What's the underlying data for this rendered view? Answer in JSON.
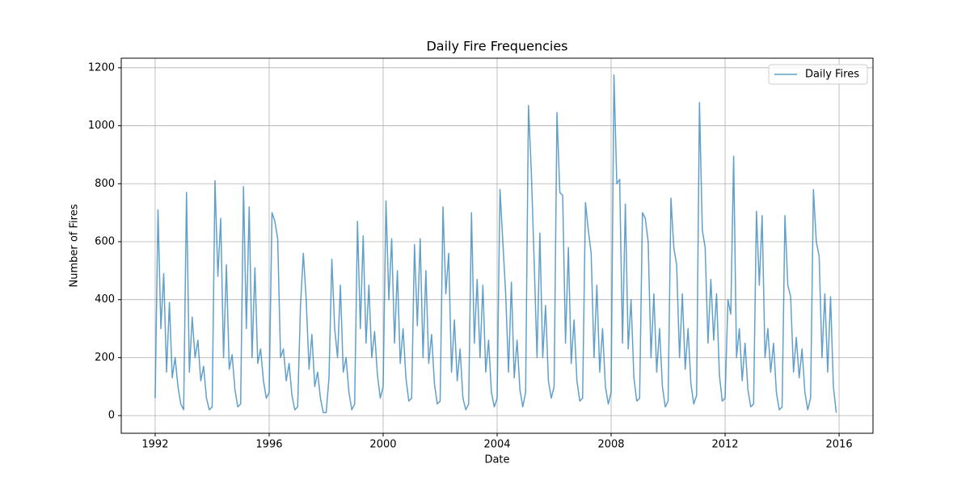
{
  "chart_data": {
    "type": "line",
    "title": "Daily Fire Frequencies",
    "x_label": "Date",
    "y_label": "Number of Fires",
    "x": [
      1992,
      1992.1,
      1992.2,
      1992.3,
      1992.4,
      1992.5,
      1992.6,
      1992.7,
      1992.8,
      1992.9,
      1993,
      1993.1,
      1993.2,
      1993.3,
      1993.4,
      1993.5,
      1993.6,
      1993.7,
      1993.8,
      1993.9,
      1994,
      1994.1,
      1994.2,
      1994.3,
      1994.4,
      1994.5,
      1994.6,
      1994.7,
      1994.8,
      1994.9,
      1995,
      1995.1,
      1995.2,
      1995.3,
      1995.4,
      1995.5,
      1995.6,
      1995.7,
      1995.8,
      1995.9,
      1996,
      1996.1,
      1996.2,
      1996.3,
      1996.4,
      1996.5,
      1996.6,
      1996.7,
      1996.8,
      1996.9,
      1997,
      1997.1,
      1997.2,
      1997.3,
      1997.4,
      1997.5,
      1997.6,
      1997.7,
      1997.8,
      1997.9,
      1998,
      1998.1,
      1998.2,
      1998.3,
      1998.4,
      1998.5,
      1998.6,
      1998.7,
      1998.8,
      1998.9,
      1999,
      1999.1,
      1999.2,
      1999.3,
      1999.4,
      1999.5,
      1999.6,
      1999.7,
      1999.8,
      1999.9,
      2000,
      2000.1,
      2000.2,
      2000.3,
      2000.4,
      2000.5,
      2000.6,
      2000.7,
      2000.8,
      2000.9,
      2001,
      2001.1,
      2001.2,
      2001.3,
      2001.4,
      2001.5,
      2001.6,
      2001.7,
      2001.8,
      2001.9,
      2002,
      2002.1,
      2002.2,
      2002.3,
      2002.4,
      2002.5,
      2002.6,
      2002.7,
      2002.8,
      2002.9,
      2003,
      2003.1,
      2003.2,
      2003.3,
      2003.4,
      2003.5,
      2003.6,
      2003.7,
      2003.8,
      2003.9,
      2004,
      2004.1,
      2004.2,
      2004.3,
      2004.4,
      2004.5,
      2004.6,
      2004.7,
      2004.8,
      2004.9,
      2005,
      2005.1,
      2005.2,
      2005.3,
      2005.4,
      2005.5,
      2005.6,
      2005.7,
      2005.8,
      2005.9,
      2006,
      2006.1,
      2006.2,
      2006.3,
      2006.4,
      2006.5,
      2006.6,
      2006.7,
      2006.8,
      2006.9,
      2007,
      2007.1,
      2007.2,
      2007.3,
      2007.4,
      2007.5,
      2007.6,
      2007.7,
      2007.8,
      2007.9,
      2008,
      2008.1,
      2008.2,
      2008.3,
      2008.4,
      2008.5,
      2008.6,
      2008.7,
      2008.8,
      2008.9,
      2009,
      2009.1,
      2009.2,
      2009.3,
      2009.4,
      2009.5,
      2009.6,
      2009.7,
      2009.8,
      2009.9,
      2010,
      2010.1,
      2010.2,
      2010.3,
      2010.4,
      2010.5,
      2010.6,
      2010.7,
      2010.8,
      2010.9,
      2011,
      2011.1,
      2011.2,
      2011.3,
      2011.4,
      2011.5,
      2011.6,
      2011.7,
      2011.8,
      2011.9,
      2012,
      2012.1,
      2012.2,
      2012.3,
      2012.4,
      2012.5,
      2012.6,
      2012.7,
      2012.8,
      2012.9,
      2013,
      2013.1,
      2013.2,
      2013.3,
      2013.4,
      2013.5,
      2013.6,
      2013.7,
      2013.8,
      2013.9,
      2014,
      2014.1,
      2014.2,
      2014.3,
      2014.4,
      2014.5,
      2014.6,
      2014.7,
      2014.8,
      2014.9,
      2015,
      2015.1,
      2015.2,
      2015.3,
      2015.4,
      2015.5,
      2015.6,
      2015.7,
      2015.8,
      2015.9
    ],
    "series": [
      {
        "name": "Daily Fires",
        "color": "#1f77b4",
        "values": [
          60,
          710,
          300,
          490,
          150,
          390,
          130,
          200,
          100,
          40,
          20,
          770,
          150,
          340,
          200,
          260,
          120,
          170,
          60,
          20,
          30,
          810,
          480,
          680,
          200,
          520,
          160,
          210,
          90,
          30,
          40,
          790,
          300,
          720,
          200,
          510,
          180,
          230,
          120,
          60,
          80,
          700,
          670,
          610,
          200,
          230,
          120,
          180,
          70,
          20,
          30,
          380,
          560,
          400,
          160,
          280,
          100,
          150,
          60,
          10,
          10,
          130,
          540,
          300,
          200,
          450,
          150,
          200,
          80,
          20,
          40,
          670,
          300,
          620,
          250,
          450,
          200,
          290,
          140,
          60,
          100,
          740,
          400,
          610,
          250,
          500,
          180,
          300,
          130,
          50,
          60,
          590,
          310,
          610,
          200,
          500,
          180,
          280,
          110,
          40,
          50,
          720,
          420,
          560,
          150,
          330,
          120,
          230,
          60,
          20,
          40,
          700,
          250,
          470,
          200,
          450,
          150,
          260,
          80,
          30,
          60,
          780,
          600,
          420,
          150,
          460,
          130,
          260,
          90,
          30,
          80,
          1070,
          840,
          530,
          200,
          630,
          200,
          380,
          120,
          60,
          100,
          1045,
          770,
          760,
          250,
          580,
          180,
          330,
          120,
          50,
          60,
          735,
          640,
          560,
          200,
          450,
          150,
          300,
          100,
          40,
          80,
          1175,
          800,
          815,
          250,
          730,
          230,
          400,
          130,
          50,
          60,
          700,
          680,
          600,
          200,
          420,
          150,
          300,
          100,
          30,
          50,
          750,
          580,
          520,
          200,
          420,
          160,
          300,
          110,
          40,
          70,
          1080,
          640,
          580,
          250,
          470,
          260,
          420,
          140,
          50,
          60,
          400,
          350,
          895,
          200,
          300,
          120,
          250,
          90,
          30,
          40,
          705,
          450,
          690,
          200,
          300,
          150,
          250,
          80,
          20,
          30,
          690,
          450,
          410,
          150,
          270,
          130,
          230,
          80,
          20,
          60,
          780,
          600,
          550,
          200,
          420,
          150,
          410,
          100,
          10
        ]
      }
    ],
    "xlim": [
      1990.81,
      2017.19
    ],
    "xticks": [
      1992,
      1996,
      2000,
      2004,
      2008,
      2012,
      2016
    ],
    "ylim": [
      -61,
      1233
    ],
    "yticks": [
      0,
      200,
      400,
      600,
      800,
      1000,
      1200
    ],
    "grid": true,
    "legend": "upper right"
  }
}
